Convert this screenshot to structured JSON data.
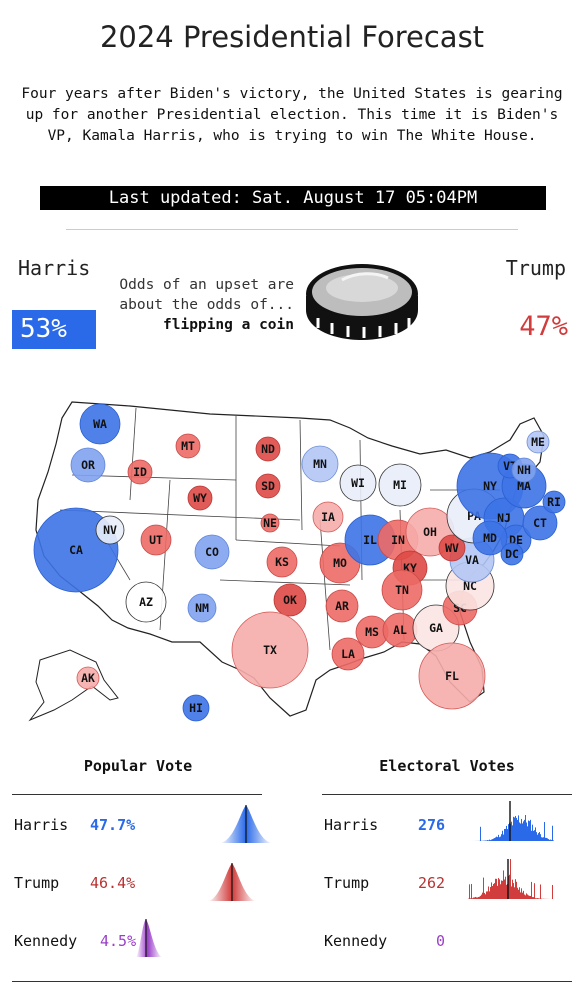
{
  "header": {
    "title": "2024 Presidential Forecast",
    "intro": "Four years after Biden's victory, the United States is gearing up for another Presidential election. This time it is Biden's VP, Kamala Harris, who is trying to win The White House.",
    "last_updated": "Last updated: Sat. August 17 05:04PM"
  },
  "odds": {
    "harris_name": "Harris",
    "trump_name": "Trump",
    "harris_pct": "53%",
    "trump_pct": "47%",
    "line1": "Odds of an upset are",
    "line2": "about the odds of...",
    "line3": "flipping a coin",
    "icon": "coin-icon"
  },
  "colors": {
    "harris": "#2a6ae8",
    "trump": "#d13c3c",
    "kennedy": "#9b3fc9"
  },
  "map": {
    "states": [
      {
        "abbr": "WA",
        "lean": "D3"
      },
      {
        "abbr": "OR",
        "lean": "D2"
      },
      {
        "abbr": "CA",
        "lean": "D3"
      },
      {
        "abbr": "NV",
        "lean": "D0"
      },
      {
        "abbr": "ID",
        "lean": "R2"
      },
      {
        "abbr": "MT",
        "lean": "R2"
      },
      {
        "abbr": "WY",
        "lean": "R3"
      },
      {
        "abbr": "UT",
        "lean": "R2"
      },
      {
        "abbr": "AZ",
        "lean": "T"
      },
      {
        "abbr": "CO",
        "lean": "D2"
      },
      {
        "abbr": "NM",
        "lean": "D2"
      },
      {
        "abbr": "ND",
        "lean": "R3"
      },
      {
        "abbr": "SD",
        "lean": "R3"
      },
      {
        "abbr": "NE",
        "lean": "R2"
      },
      {
        "abbr": "KS",
        "lean": "R2"
      },
      {
        "abbr": "OK",
        "lean": "R3"
      },
      {
        "abbr": "TX",
        "lean": "R1"
      },
      {
        "abbr": "MN",
        "lean": "D1"
      },
      {
        "abbr": "IA",
        "lean": "R1"
      },
      {
        "abbr": "MO",
        "lean": "R2"
      },
      {
        "abbr": "AR",
        "lean": "R2"
      },
      {
        "abbr": "LA",
        "lean": "R2"
      },
      {
        "abbr": "WI",
        "lean": "D0"
      },
      {
        "abbr": "IL",
        "lean": "D3"
      },
      {
        "abbr": "MI",
        "lean": "D0"
      },
      {
        "abbr": "IN",
        "lean": "R2"
      },
      {
        "abbr": "OH",
        "lean": "R1"
      },
      {
        "abbr": "KY",
        "lean": "R3"
      },
      {
        "abbr": "TN",
        "lean": "R2"
      },
      {
        "abbr": "MS",
        "lean": "R2"
      },
      {
        "abbr": "AL",
        "lean": "R2"
      },
      {
        "abbr": "GA",
        "lean": "R0"
      },
      {
        "abbr": "FL",
        "lean": "R1"
      },
      {
        "abbr": "SC",
        "lean": "R2"
      },
      {
        "abbr": "NC",
        "lean": "R0"
      },
      {
        "abbr": "VA",
        "lean": "D1"
      },
      {
        "abbr": "WV",
        "lean": "R3"
      },
      {
        "abbr": "PA",
        "lean": "D0"
      },
      {
        "abbr": "NY",
        "lean": "D3"
      },
      {
        "abbr": "NJ",
        "lean": "D3"
      },
      {
        "abbr": "DE",
        "lean": "D3"
      },
      {
        "abbr": "MD",
        "lean": "D3"
      },
      {
        "abbr": "DC",
        "lean": "D3"
      },
      {
        "abbr": "CT",
        "lean": "D3"
      },
      {
        "abbr": "RI",
        "lean": "D3"
      },
      {
        "abbr": "MA",
        "lean": "D3"
      },
      {
        "abbr": "VT",
        "lean": "D3"
      },
      {
        "abbr": "NH",
        "lean": "D2"
      },
      {
        "abbr": "ME",
        "lean": "D1"
      },
      {
        "abbr": "AK",
        "lean": "R1"
      },
      {
        "abbr": "HI",
        "lean": "D3"
      }
    ]
  },
  "popular_vote": {
    "title": "Popular Vote",
    "rows": [
      {
        "name": "Harris",
        "value": "47.7%"
      },
      {
        "name": "Trump",
        "value": "46.4%"
      },
      {
        "name": "Kennedy",
        "value": "4.5%"
      }
    ]
  },
  "electoral_votes": {
    "title": "Electoral Votes",
    "rows": [
      {
        "name": "Harris",
        "value": "276"
      },
      {
        "name": "Trump",
        "value": "262"
      },
      {
        "name": "Kennedy",
        "value": "0"
      }
    ]
  }
}
